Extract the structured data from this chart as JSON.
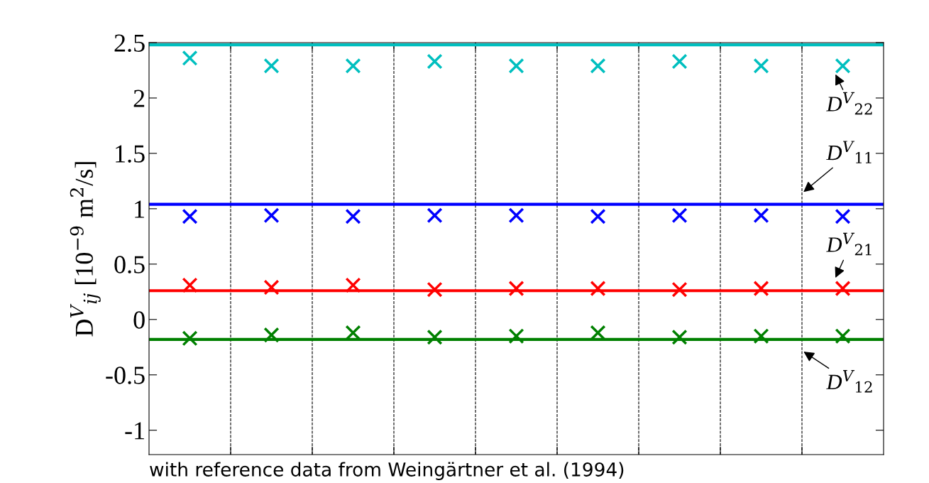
{
  "chart_data": {
    "type": "scatter",
    "ylabel": "D$^{V}$$_{ij}$ [10$^{−9}$ m$^{2}$/s]",
    "categories": [
      null,
      null,
      null,
      null,
      null,
      null,
      null,
      null,
      null
    ],
    "series": [
      {
        "color": "#00bfbf",
        "values": [
          2.36,
          2.29,
          2.29,
          2.33,
          2.29,
          2.29,
          2.33,
          2.29,
          2.29
        ]
      },
      {
        "color": "#0000ff",
        "values": [
          0.93,
          0.94,
          0.93,
          0.94,
          0.94,
          0.93,
          0.94,
          0.94,
          0.93
        ]
      },
      {
        "color": "#ff0000",
        "values": [
          0.31,
          0.29,
          0.31,
          0.27,
          0.28,
          0.28,
          0.27,
          0.28,
          0.28
        ]
      },
      {
        "color": "#008000",
        "values": [
          -0.17,
          -0.14,
          -0.12,
          -0.16,
          -0.15,
          -0.12,
          -0.16,
          -0.15,
          -0.15
        ]
      }
    ],
    "ref_lines": [
      {
        "axis": "y",
        "value": 2.48,
        "label": "D$^{V}$$_{22}$",
        "color": "#00bfbf",
        "line_style": "solid"
      },
      {
        "axis": "y",
        "value": 1.04,
        "label": "D$^{V}$$_{11}$",
        "color": "#0000ff",
        "line_style": "solid"
      },
      {
        "axis": "y",
        "value": 0.26,
        "label": "D$^{V}$$_{21}$",
        "color": "#ff0000",
        "line_style": "solid"
      },
      {
        "axis": "y",
        "value": -0.18,
        "label": "D$^{V}$$_{12}$",
        "color": "#008000",
        "line_style": "solid"
      }
    ],
    "ylim": [
      -1.22,
      2.5
    ],
    "yticks": [
      -1,
      -0.5,
      0,
      0.5,
      1,
      1.5,
      2,
      2.5
    ],
    "grid": "x",
    "marker": "cross",
    "tick_labels": "y",
    "legend": false,
    "annotations": [
      "with reference data from Weingärtner et al. (1994)"
    ]
  }
}
